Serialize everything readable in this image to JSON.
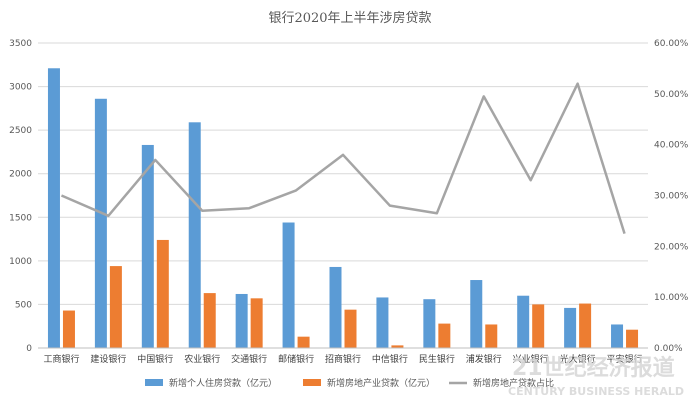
{
  "chart_data": {
    "type": "bar",
    "title": "银行2020年上半年涉房贷款",
    "categories": [
      "工商银行",
      "建设银行",
      "中国银行",
      "农业银行",
      "交通银行",
      "邮储银行",
      "招商银行",
      "中信银行",
      "民生银行",
      "浦发银行",
      "兴业银行",
      "光大银行",
      "平安银行"
    ],
    "series": [
      {
        "name": "新增个人住房贷款（亿元）",
        "kind": "bar",
        "axis": "left",
        "color": "#5b9bd5",
        "values": [
          3210,
          2860,
          2330,
          2590,
          620,
          1440,
          930,
          580,
          560,
          780,
          600,
          460,
          270
        ]
      },
      {
        "name": "新增房地产业贷款（亿元）",
        "kind": "bar",
        "axis": "left",
        "color": "#ed7d31",
        "values": [
          430,
          940,
          1240,
          630,
          570,
          130,
          440,
          30,
          280,
          270,
          500,
          510,
          210
        ]
      },
      {
        "name": "新增房地产贷款占比",
        "kind": "line",
        "axis": "right",
        "color": "#a5a5a5",
        "values": [
          0.3,
          0.26,
          0.37,
          0.27,
          0.275,
          0.31,
          0.38,
          0.28,
          0.265,
          0.495,
          0.33,
          0.52,
          0.225
        ]
      }
    ],
    "ylim": [
      0,
      3500
    ],
    "y_ticks": [
      "0",
      "500",
      "1000",
      "1500",
      "2000",
      "2500",
      "3000",
      "3500"
    ],
    "y2lim": [
      0,
      0.6
    ],
    "y2_ticks": [
      "0.00%",
      "10.00%",
      "20.00%",
      "30.00%",
      "40.00%",
      "50.00%",
      "60.00%"
    ],
    "grid": true,
    "legend_position": "bottom"
  },
  "watermark": {
    "line1": "21世纪经济报道",
    "line2": "CENTURY BUSINESS HERALD"
  }
}
